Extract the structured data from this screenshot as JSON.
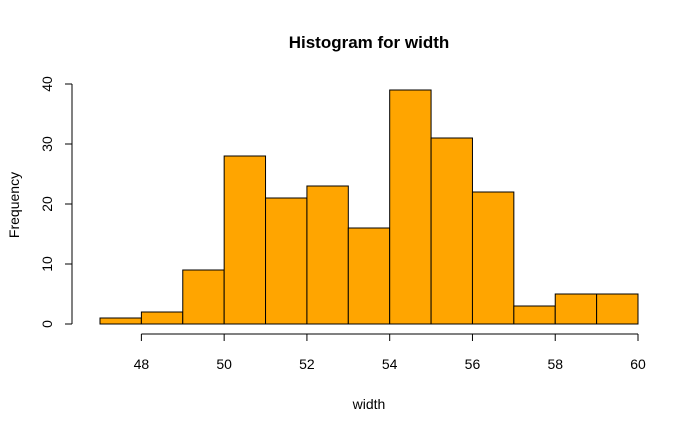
{
  "chart_data": {
    "type": "bar",
    "title": "Histogram for width",
    "xlabel": "width",
    "ylabel": "Frequency",
    "bin_edges": [
      47,
      48,
      49,
      50,
      51,
      52,
      53,
      54,
      55,
      56,
      57,
      58,
      59,
      60
    ],
    "values": [
      1,
      2,
      9,
      28,
      21,
      23,
      16,
      39,
      31,
      22,
      3,
      5,
      5
    ],
    "xlim": [
      47,
      60
    ],
    "ylim": [
      0,
      40
    ],
    "x_ticks": [
      48,
      50,
      52,
      54,
      56,
      58,
      60
    ],
    "y_ticks": [
      0,
      10,
      20,
      30,
      40
    ],
    "bar_color": "#FFA500",
    "border_color": "#000000",
    "grid": false
  }
}
